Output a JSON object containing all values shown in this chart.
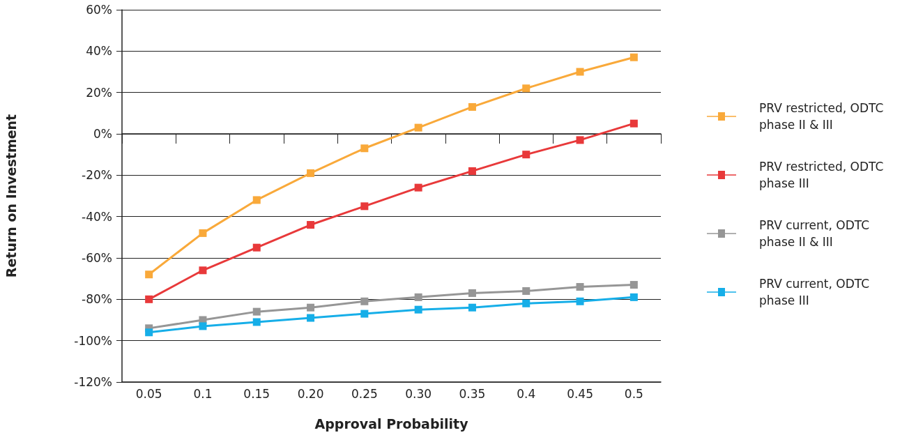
{
  "chart_data": {
    "type": "line",
    "xlabel": "Approval Probability",
    "ylabel": "Return on Investment",
    "categories": [
      "0.05",
      "0.1",
      "0.15",
      "0.20",
      "0.25",
      "0.30",
      "0.35",
      "0.4",
      "0.45",
      "0.5"
    ],
    "series": [
      {
        "name": "PRV restricted, ODTC phase II & III",
        "color": "#f9a93a",
        "values": [
          -68,
          -48,
          -32,
          -19,
          -7,
          3,
          13,
          22,
          30,
          37
        ]
      },
      {
        "name": "PRV restricted, ODTC phase III",
        "color": "#e8393a",
        "values": [
          -80,
          -66,
          -55,
          -44,
          -35,
          -26,
          -18,
          -10,
          -3,
          5
        ]
      },
      {
        "name": "PRV current, ODTC phase II & III",
        "color": "#969696",
        "values": [
          -94,
          -90,
          -86,
          -84,
          -81,
          -79,
          -77,
          -76,
          -74,
          -73
        ]
      },
      {
        "name": "PRV current, ODTC phase III",
        "color": "#16aee8",
        "values": [
          -96,
          -93,
          -91,
          -89,
          -87,
          -85,
          -84,
          -82,
          -81,
          -79
        ]
      }
    ],
    "ylim": [
      -120,
      60
    ],
    "yticks": [
      {
        "value": -120,
        "label": "-120%"
      },
      {
        "value": -100,
        "label": "-100%"
      },
      {
        "value": -80,
        "label": "-80%"
      },
      {
        "value": -60,
        "label": "-60%"
      },
      {
        "value": -40,
        "label": "-40%"
      },
      {
        "value": -20,
        "label": "-20%"
      },
      {
        "value": 0,
        "label": "0%"
      },
      {
        "value": 20,
        "label": "20%"
      },
      {
        "value": 40,
        "label": "40%"
      },
      {
        "value": 60,
        "label": "60%"
      }
    ],
    "grid": "y",
    "legend": "right",
    "marker": "square",
    "line_style": "solid"
  }
}
